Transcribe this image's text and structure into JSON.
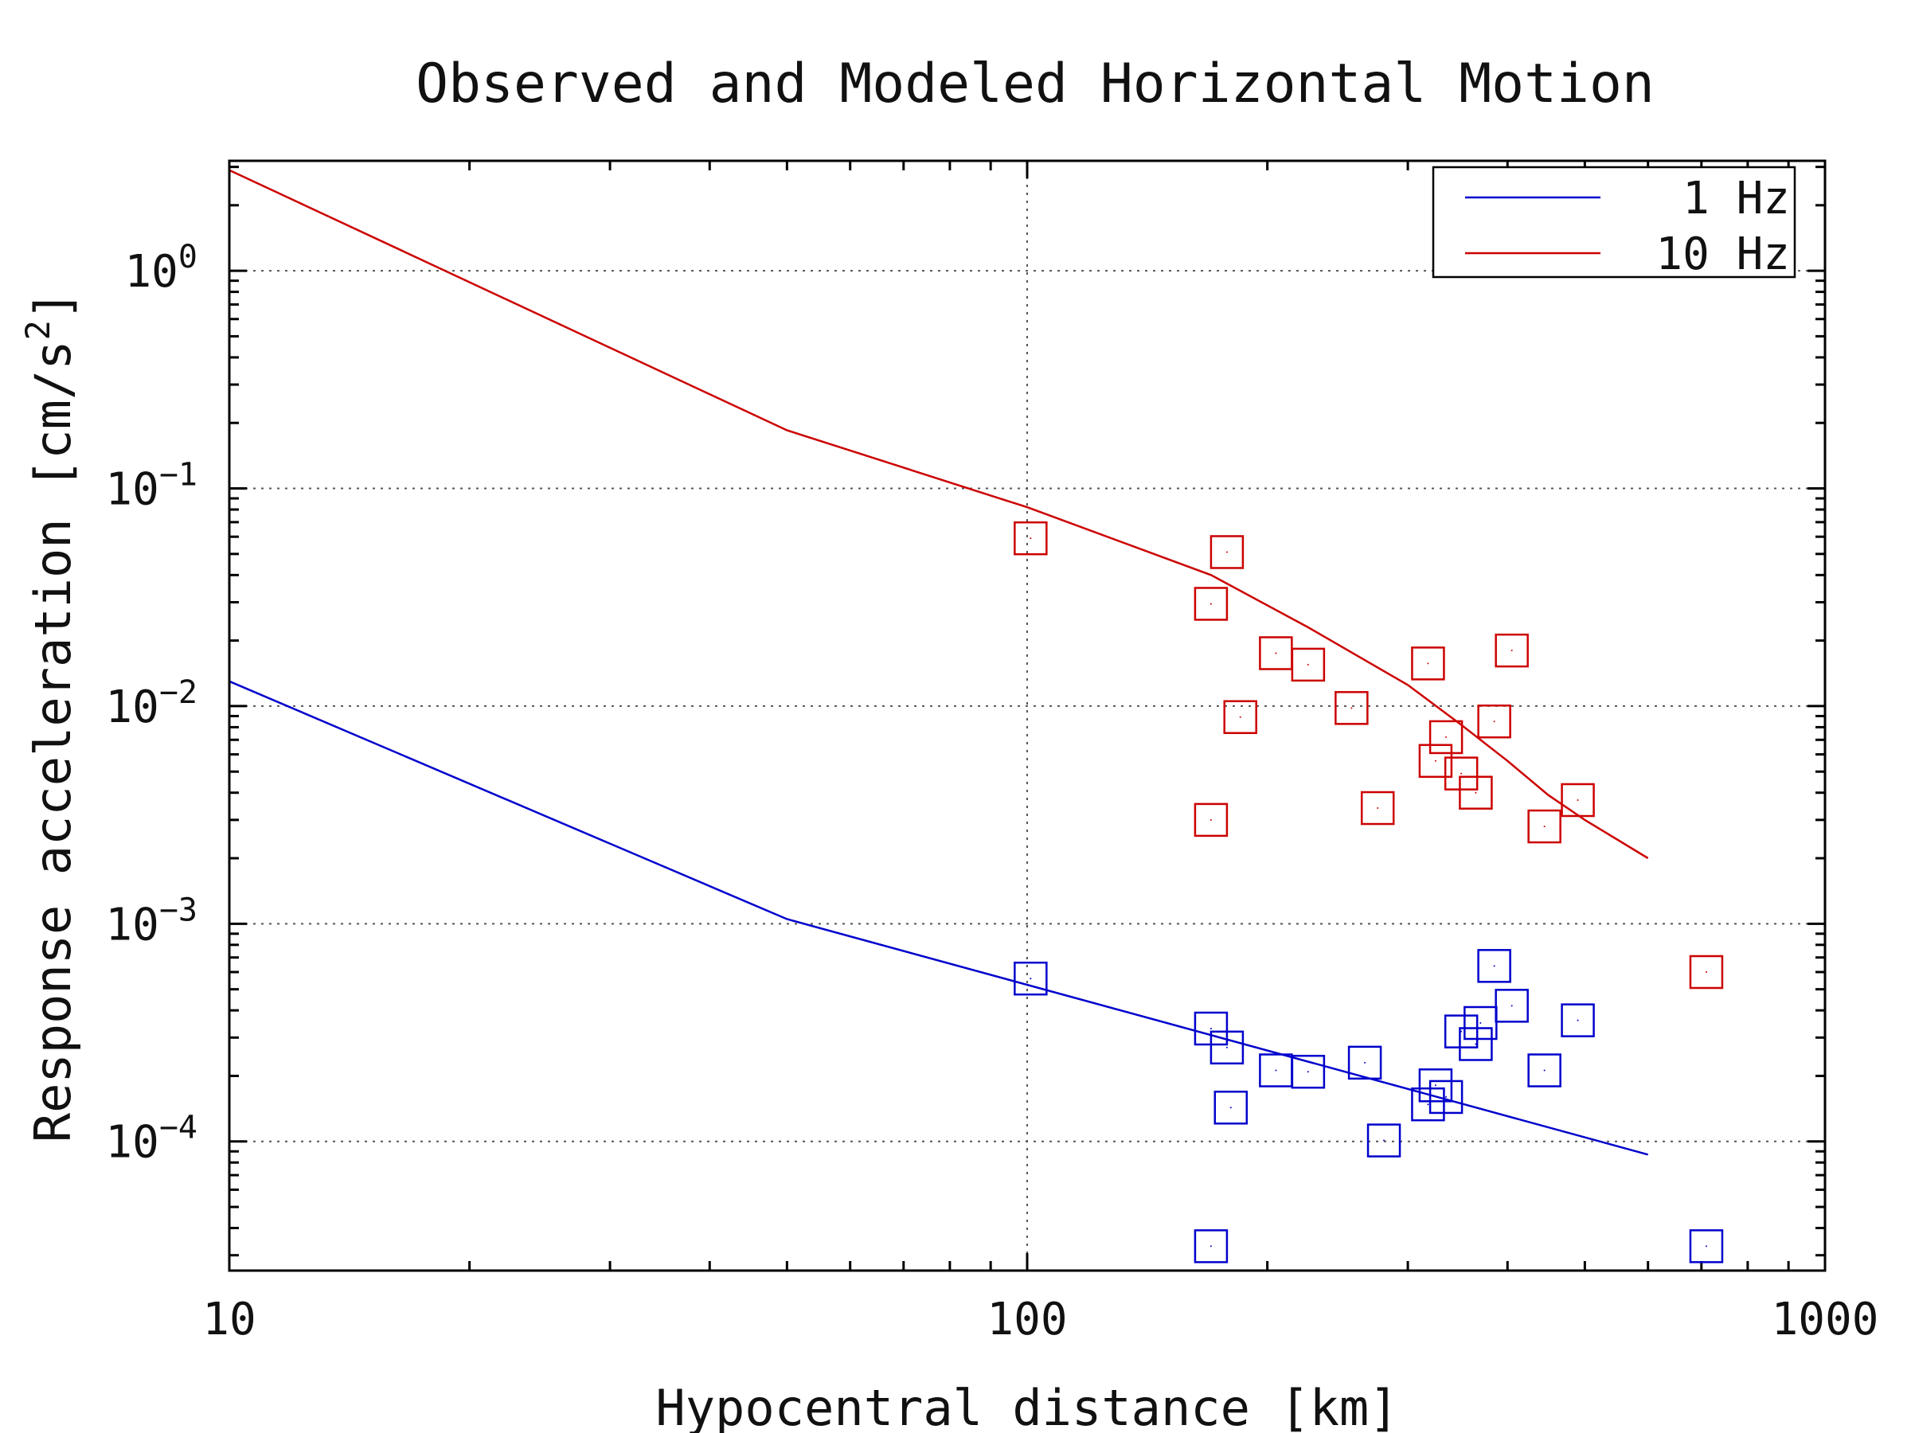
{
  "chart_data": {
    "type": "scatter",
    "title": "Observed and Modeled Horizontal Motion",
    "xlabel": "Hypocentral distance [km]",
    "ylabel": "Response acceleration [cm/s",
    "ylabel_superscript": "2",
    "ylabel_suffix": "]",
    "xscale": "log",
    "yscale": "log",
    "xlim": [
      10,
      1000
    ],
    "ylim": [
      2.55e-05,
      3.2
    ],
    "grid": true,
    "legend_position": "top-right",
    "x_ticks": [
      {
        "value": 10,
        "label": "10"
      },
      {
        "value": 100,
        "label": "100"
      },
      {
        "value": 1000,
        "label": "1000"
      }
    ],
    "y_ticks": [
      {
        "value": 1,
        "base": "10",
        "exp": "0"
      },
      {
        "value": 0.1,
        "base": "10",
        "exp": "−1"
      },
      {
        "value": 0.01,
        "base": "10",
        "exp": "−2"
      },
      {
        "value": 0.001,
        "base": "10",
        "exp": "−3"
      },
      {
        "value": 0.0001,
        "base": "10",
        "exp": "−4"
      }
    ],
    "series": [
      {
        "name": "1 Hz",
        "color": "#0000cc",
        "line": {
          "x": [
            10,
            50,
            600
          ],
          "y": [
            0.013,
            0.00105,
            8.7e-05
          ]
        },
        "points": {
          "x": [
            101,
            170,
            178,
            180,
            205,
            225,
            265,
            280,
            318,
            325,
            335,
            350,
            365,
            370,
            385,
            405,
            445,
            490,
            710,
            170
          ],
          "y": [
            0.00056,
            0.00033,
            0.00027,
            0.000143,
            0.000212,
            0.000209,
            0.00023,
            0.000101,
            0.000148,
            0.000181,
            0.00016,
            0.00032,
            0.00028,
            0.00035,
            0.00064,
            0.00042,
            0.000212,
            0.00036,
            3.3e-05,
            3.3e-05
          ]
        }
      },
      {
        "name": "10 Hz",
        "color": "#cc0000",
        "line": {
          "x": [
            10,
            50,
            100,
            170,
            225,
            300,
            350,
            400,
            450,
            500,
            600
          ],
          "y": [
            2.9,
            0.185,
            0.082,
            0.04,
            0.023,
            0.0125,
            0.0082,
            0.0056,
            0.0039,
            0.003,
            0.002
          ]
        },
        "points": {
          "x": [
            101,
            170,
            178,
            170,
            205,
            185,
            225,
            255,
            275,
            318,
            325,
            335,
            350,
            365,
            385,
            405,
            445,
            490,
            710
          ],
          "y": [
            0.059,
            0.0295,
            0.051,
            0.003,
            0.0175,
            0.0089,
            0.0155,
            0.0098,
            0.0034,
            0.0157,
            0.0056,
            0.0072,
            0.0049,
            0.004,
            0.0085,
            0.018,
            0.0028,
            0.0037,
            0.0006
          ]
        }
      }
    ]
  }
}
